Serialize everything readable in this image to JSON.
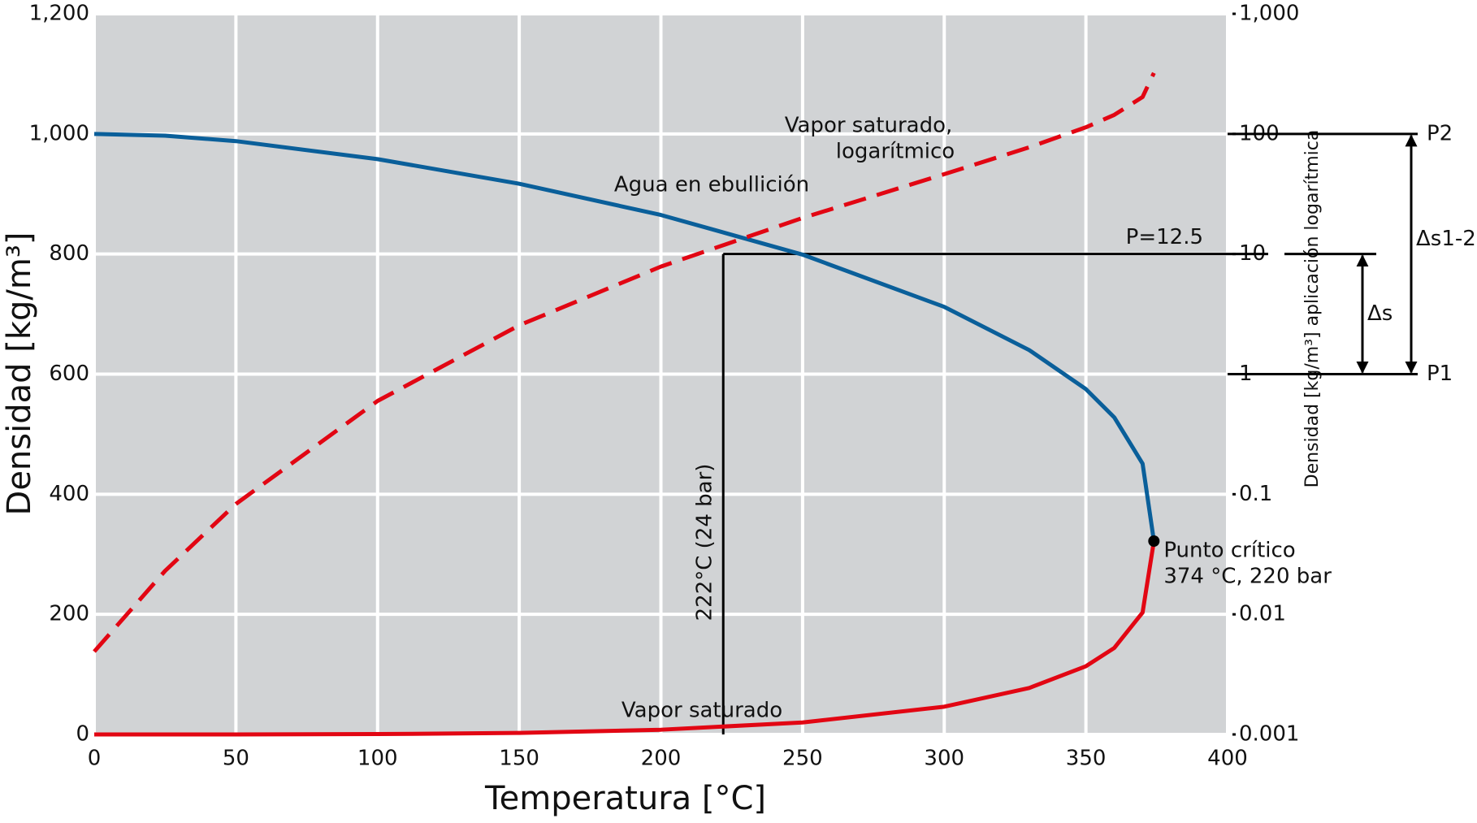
{
  "chart_data": {
    "type": "line",
    "xlabel": "Temperatura [°C]",
    "ylabel": "Densidad [kg/m³]",
    "y2label": "Densidad [kg/m³] aplicación logarítmica",
    "xlim": [
      0,
      400
    ],
    "xticks": [
      0,
      50,
      100,
      150,
      200,
      250,
      300,
      350,
      400
    ],
    "ylim": [
      0,
      1200
    ],
    "yticks": [
      0,
      200,
      400,
      600,
      800,
      {
        "value": 1000,
        "label": "1,000"
      },
      {
        "value": 1200,
        "label": "1,200"
      }
    ],
    "y2lim": [
      0.001,
      1000
    ],
    "y2scale": "log",
    "y2ticks": [
      0.001,
      0.01,
      0.1,
      1,
      10,
      100,
      {
        "value": 1000,
        "label": "1,000"
      }
    ],
    "grid": true,
    "background": "#d1d3d5",
    "series": [
      {
        "name": "Agua en ebullición",
        "color": "#0a5f9a",
        "x": [
          0,
          25,
          50,
          100,
          150,
          200,
          250,
          300,
          330,
          350,
          360,
          370,
          374
        ],
        "values": [
          1000,
          997,
          988,
          958,
          917,
          865,
          799,
          712,
          640,
          575,
          528,
          451,
          322
        ]
      },
      {
        "name": "Vapor saturado",
        "color": "#e20613",
        "x": [
          0,
          50,
          100,
          150,
          200,
          250,
          300,
          330,
          350,
          360,
          370,
          374
        ],
        "values": [
          0.005,
          0.083,
          0.598,
          2.55,
          7.86,
          19.97,
          46.2,
          77.4,
          113.6,
          144,
          203,
          322
        ]
      },
      {
        "name": "Vapor saturado, logarítmico",
        "color": "#e20613",
        "axis": "y2",
        "dashed": true,
        "x": [
          0,
          25,
          50,
          100,
          150,
          200,
          250,
          300,
          330,
          350,
          360,
          370,
          374
        ],
        "values": [
          0.0049,
          0.023,
          0.083,
          0.598,
          2.55,
          7.86,
          19.97,
          46.2,
          77.4,
          113.6,
          144,
          203,
          322
        ]
      }
    ],
    "critical_point": {
      "x": 374,
      "y": 322,
      "label": "Punto crítico",
      "sublabel": "374 °C, 220 bar"
    },
    "curve_labels": [
      "Agua en ebullición",
      "Vapor saturado,",
      "logarítmico",
      "Vapor saturado"
    ],
    "reference": {
      "x": 222,
      "y2": 10,
      "label": "P=12.5",
      "x_label": "222°C (24 bar)"
    },
    "levels": [
      {
        "label": "P1",
        "value": 1
      },
      {
        "label": "P2",
        "value": 100
      }
    ],
    "brackets": [
      {
        "label": "Δs",
        "from": 1,
        "to": 10
      },
      {
        "label": "Δs1-2",
        "from": 1,
        "to": 100
      }
    ]
  }
}
